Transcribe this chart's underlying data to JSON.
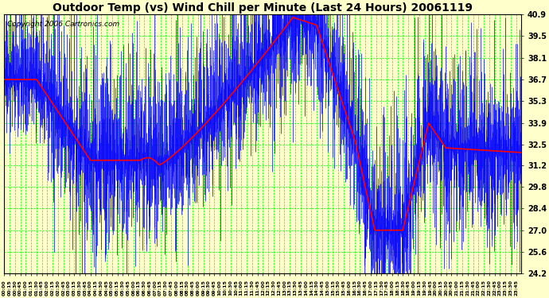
{
  "title": "Outdoor Temp (vs) Wind Chill per Minute (Last 24 Hours) 20061119",
  "copyright": "Copyright 2006 Cartronics.com",
  "yticks": [
    24.2,
    25.6,
    27.0,
    28.4,
    29.8,
    31.2,
    32.5,
    33.9,
    35.3,
    36.7,
    38.1,
    39.5,
    40.9
  ],
  "ylim": [
    24.2,
    40.9
  ],
  "bg_color": "#ffffcc",
  "grid_color": "#00ff00",
  "bar_color": "#0000ff",
  "line_color": "#ff0000",
  "title_fontsize": 10,
  "copyright_fontsize": 6.5,
  "figsize": [
    6.9,
    3.75
  ],
  "dpi": 100
}
